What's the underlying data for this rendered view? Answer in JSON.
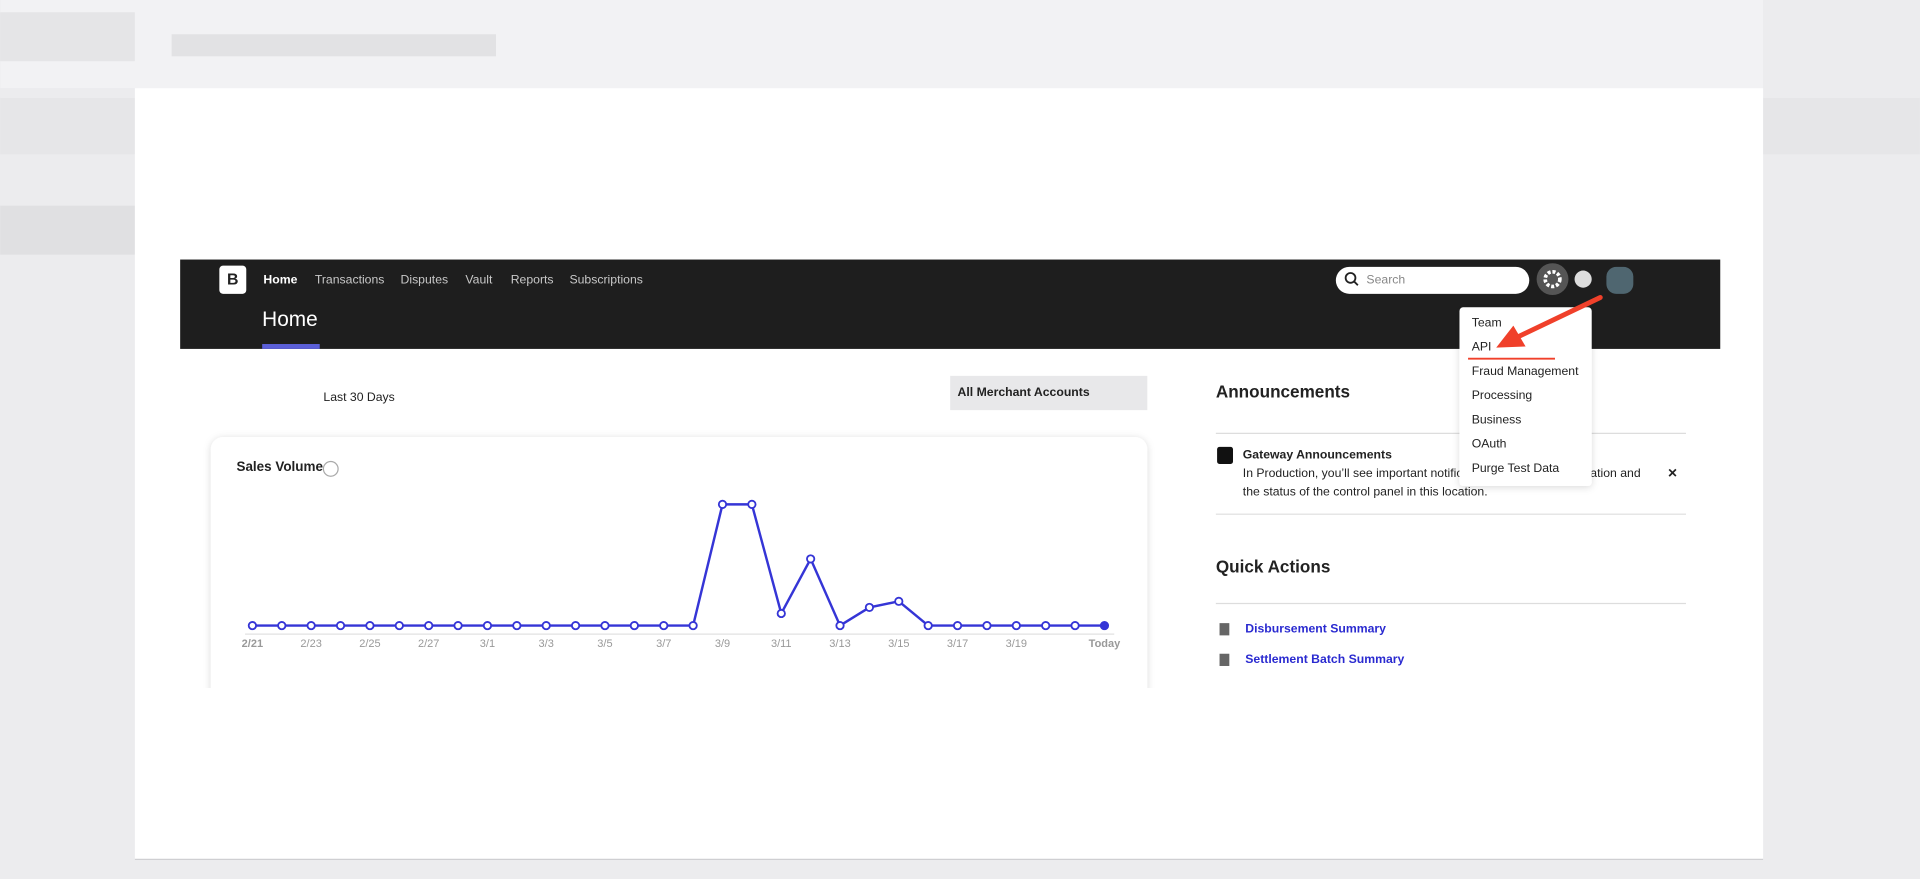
{
  "nav": {
    "logo": "B",
    "items": [
      "Home",
      "Transactions",
      "Disputes",
      "Vault",
      "Reports",
      "Subscriptions"
    ],
    "search_placeholder": "Search"
  },
  "page_title": "Home",
  "filters": {
    "range": "Last 30 Days",
    "account": "All Merchant Accounts"
  },
  "chart_data": {
    "type": "line",
    "title": "Sales Volume",
    "categories": [
      "2/21",
      null,
      "2/23",
      null,
      "2/25",
      null,
      "2/27",
      null,
      "3/1",
      null,
      "3/3",
      null,
      "3/5",
      null,
      "3/7",
      null,
      "3/9",
      null,
      "3/11",
      null,
      "3/13",
      null,
      "3/15",
      null,
      "3/17",
      null,
      "3/19",
      null,
      null,
      "Today"
    ],
    "values": [
      0,
      0,
      0,
      0,
      0,
      0,
      0,
      0,
      0,
      0,
      0,
      0,
      0,
      0,
      0,
      0,
      100,
      100,
      10,
      55,
      0,
      15,
      20,
      0,
      0,
      0,
      0,
      0,
      0,
      0
    ],
    "color": "#3535d6",
    "ylim": [
      0,
      100
    ]
  },
  "announcements": {
    "title": "Announcements",
    "item_title": "Gateway Announcements",
    "lines": [
      "In Production, you’ll see important notifications about your integration and",
      "the status of the control panel in this location."
    ],
    "close": "×"
  },
  "quick_actions": {
    "title": "Quick Actions",
    "items": [
      "Disbursement Summary",
      "Settlement Batch Summary"
    ]
  },
  "settings_menu": {
    "items": [
      "Team",
      "API",
      "Fraud Management",
      "Processing",
      "Business",
      "OAuth",
      "Purge Test Data"
    ]
  }
}
